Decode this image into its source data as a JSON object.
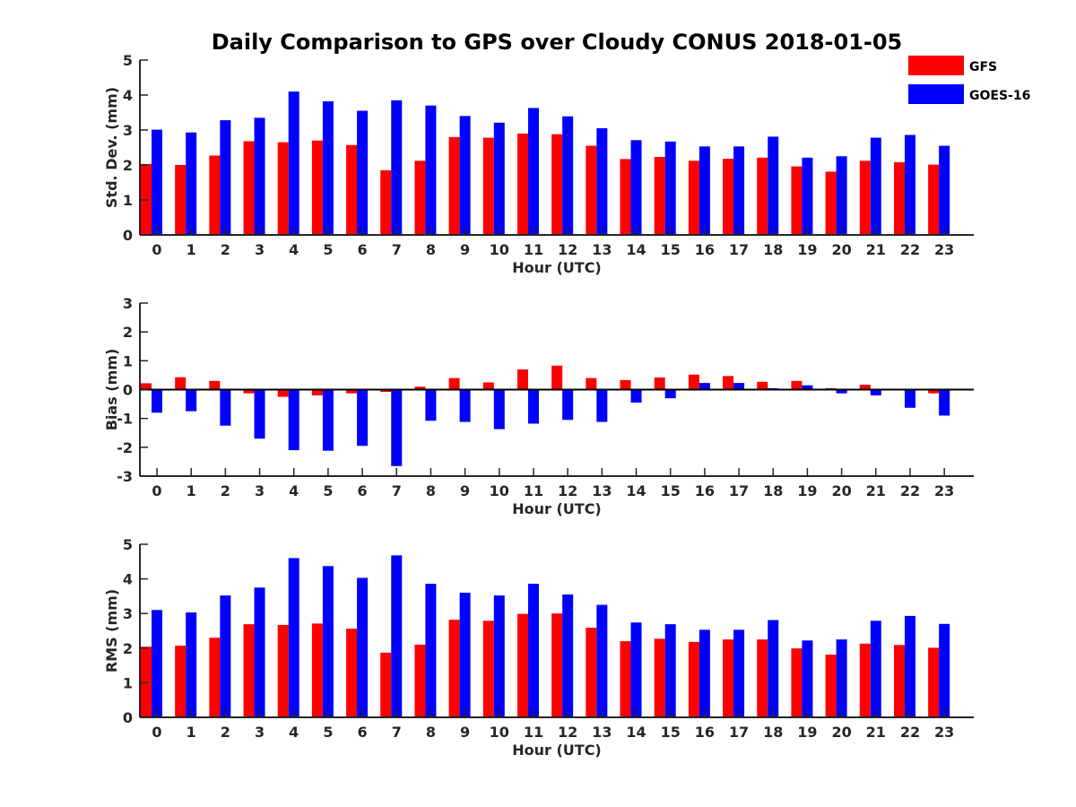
{
  "title": "Daily Comparison to GPS over Cloudy CONUS 2018-01-05",
  "legend": {
    "items": [
      {
        "label": "GFS",
        "color": "#ff0000"
      },
      {
        "label": "GOES-16",
        "color": "#0000ff"
      }
    ]
  },
  "chart_data": [
    {
      "type": "bar",
      "ylabel": "Std. Dev. (mm)",
      "xlabel": "Hour (UTC)",
      "ylim": [
        0,
        5
      ],
      "yticks": [
        0,
        1,
        2,
        3,
        4,
        5
      ],
      "categories": [
        "0",
        "1",
        "2",
        "3",
        "4",
        "5",
        "6",
        "7",
        "8",
        "9",
        "10",
        "11",
        "12",
        "13",
        "14",
        "15",
        "16",
        "17",
        "18",
        "19",
        "20",
        "21",
        "22",
        "23"
      ],
      "series": [
        {
          "name": "GFS",
          "color": "#ff0000",
          "values": [
            2.03,
            2.0,
            2.27,
            2.68,
            2.65,
            2.7,
            2.57,
            1.85,
            2.12,
            2.8,
            2.78,
            2.9,
            2.88,
            2.55,
            2.17,
            2.23,
            2.12,
            2.18,
            2.21,
            1.96,
            1.81,
            2.12,
            2.08,
            2.01
          ]
        },
        {
          "name": "GOES-16",
          "color": "#0000ff",
          "values": [
            3.01,
            2.93,
            3.28,
            3.35,
            4.1,
            3.82,
            3.55,
            3.85,
            3.7,
            3.4,
            3.21,
            3.63,
            3.39,
            3.05,
            2.71,
            2.67,
            2.53,
            2.53,
            2.81,
            2.21,
            2.25,
            2.78,
            2.86,
            2.55
          ]
        }
      ]
    },
    {
      "type": "bar",
      "ylabel": "Bias (mm)",
      "xlabel": "Hour (UTC)",
      "ylim": [
        -3,
        3
      ],
      "yticks": [
        -3,
        -2,
        -1,
        0,
        1,
        2,
        3
      ],
      "categories": [
        "0",
        "1",
        "2",
        "3",
        "4",
        "5",
        "6",
        "7",
        "8",
        "9",
        "10",
        "11",
        "12",
        "13",
        "14",
        "15",
        "16",
        "17",
        "18",
        "19",
        "20",
        "21",
        "22",
        "23"
      ],
      "series": [
        {
          "name": "GFS",
          "color": "#ff0000",
          "values": [
            0.22,
            0.43,
            0.3,
            -0.13,
            -0.25,
            -0.2,
            -0.13,
            -0.08,
            0.1,
            0.4,
            0.25,
            0.7,
            0.83,
            0.4,
            0.33,
            0.42,
            0.52,
            0.47,
            0.27,
            0.3,
            0.05,
            0.17,
            0.02,
            -0.13
          ]
        },
        {
          "name": "GOES-16",
          "color": "#0000ff",
          "values": [
            -0.8,
            -0.75,
            -1.25,
            -1.7,
            -2.1,
            -2.12,
            -1.95,
            -2.65,
            -1.08,
            -1.12,
            -1.37,
            -1.18,
            -1.05,
            -1.12,
            -0.45,
            -0.3,
            0.23,
            0.23,
            0.05,
            0.15,
            -0.13,
            -0.2,
            -0.63,
            -0.9
          ]
        }
      ]
    },
    {
      "type": "bar",
      "ylabel": "RMS (mm)",
      "xlabel": "Hour (UTC)",
      "ylim": [
        0,
        5
      ],
      "yticks": [
        0,
        1,
        2,
        3,
        4,
        5
      ],
      "categories": [
        "0",
        "1",
        "2",
        "3",
        "4",
        "5",
        "6",
        "7",
        "8",
        "9",
        "10",
        "11",
        "12",
        "13",
        "14",
        "15",
        "16",
        "17",
        "18",
        "19",
        "20",
        "21",
        "22",
        "23"
      ],
      "series": [
        {
          "name": "GFS",
          "color": "#ff0000",
          "values": [
            2.04,
            2.07,
            2.3,
            2.69,
            2.67,
            2.71,
            2.56,
            1.87,
            2.1,
            2.82,
            2.79,
            2.99,
            3.0,
            2.59,
            2.2,
            2.27,
            2.18,
            2.25,
            2.25,
            1.99,
            1.81,
            2.13,
            2.09,
            2.01
          ]
        },
        {
          "name": "GOES-16",
          "color": "#0000ff",
          "values": [
            3.1,
            3.03,
            3.52,
            3.75,
            4.6,
            4.37,
            4.03,
            4.68,
            3.86,
            3.6,
            3.52,
            3.86,
            3.55,
            3.25,
            2.74,
            2.69,
            2.53,
            2.53,
            2.81,
            2.22,
            2.25,
            2.79,
            2.93,
            2.7
          ]
        }
      ]
    }
  ]
}
